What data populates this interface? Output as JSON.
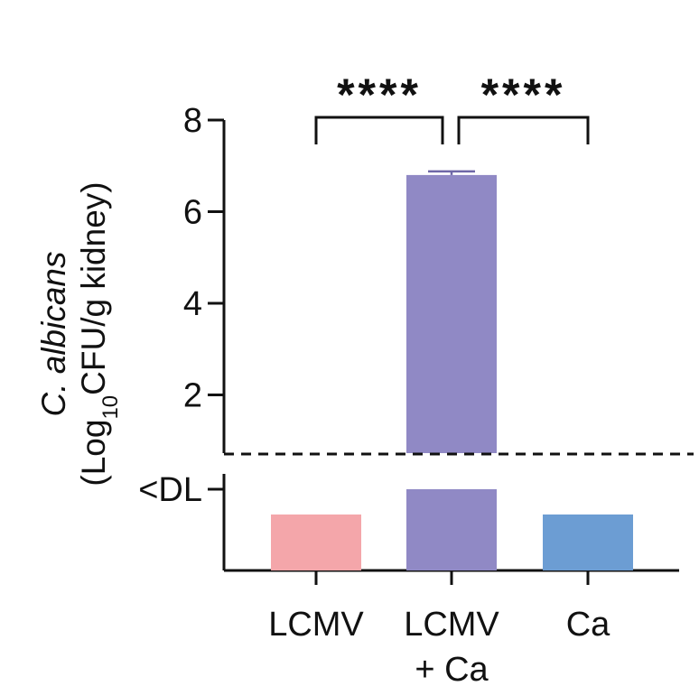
{
  "chart_data": {
    "type": "bar",
    "ylabel_line1_italic": "C. albicans",
    "ylabel_line2_prefix": "(Log",
    "ylabel_line2_sub": "10",
    "ylabel_line2_suffix": "CFU/g kidney)",
    "categories": [
      "LCMV",
      "LCMV + Ca",
      "Ca"
    ],
    "category_lines": [
      [
        "LCMV"
      ],
      [
        "LCMV",
        "+ Ca"
      ],
      [
        "Ca"
      ]
    ],
    "values": [
      "<DL",
      6.8,
      "<DL"
    ],
    "error_upper": [
      null,
      6.88,
      null
    ],
    "below_dl_level": [
      "below",
      "at",
      "below"
    ],
    "colors": [
      "#f4a6aa",
      "#9089c5",
      "#6c9dd3"
    ],
    "ylim": [
      0,
      8
    ],
    "yticks": [
      2,
      4,
      6,
      8
    ],
    "ytick_labels": [
      "2",
      "4",
      "6",
      "8"
    ],
    "dl_label": "<DL",
    "detection_limit_line": "dashed",
    "significance": [
      {
        "from": 0,
        "to": 1,
        "label": "****"
      },
      {
        "from": 1,
        "to": 2,
        "label": "****"
      }
    ]
  }
}
